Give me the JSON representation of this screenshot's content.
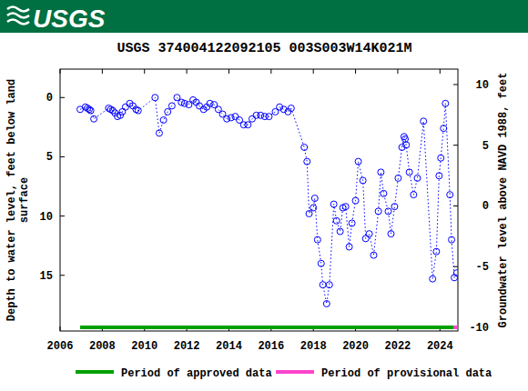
{
  "header": {
    "logo": "USGS"
  },
  "chart_data": {
    "type": "scatter",
    "title": "USGS 374004122092105 003S003W14K021M",
    "y_label": [
      "Depth to water level, feet below land",
      "surface"
    ],
    "y2_label": "Groundwater level above NAVD 1988, feet",
    "xlim": [
      2006,
      2024.85
    ],
    "xticks": [
      2006,
      2008,
      2010,
      2012,
      2014,
      2016,
      2018,
      2020,
      2022,
      2024
    ],
    "ylim": [
      19.7,
      -2.4
    ],
    "yticks": [
      0,
      5,
      10,
      15
    ],
    "y2lim": [
      -10.3,
      11.27
    ],
    "y2ticks": [
      10,
      5,
      0,
      -5,
      -10
    ],
    "x": [
      2006.95,
      2007.2,
      2007.3,
      2007.38,
      2007.45,
      2007.6,
      2008.3,
      2008.4,
      2008.5,
      2008.6,
      2008.72,
      2008.85,
      2008.95,
      2009.1,
      2009.3,
      2009.45,
      2009.6,
      2009.7,
      2010.5,
      2010.7,
      2010.9,
      2011.1,
      2011.3,
      2011.54,
      2011.75,
      2011.9,
      2012.1,
      2012.3,
      2012.45,
      2012.6,
      2012.8,
      2012.95,
      2013.1,
      2013.3,
      2013.5,
      2013.7,
      2013.9,
      2014.1,
      2014.3,
      2014.5,
      2014.7,
      2014.9,
      2015.1,
      2015.3,
      2015.5,
      2015.7,
      2015.9,
      2016.2,
      2016.4,
      2016.6,
      2016.8,
      2016.95,
      2017.57,
      2017.7,
      2017.8,
      2018.0,
      2018.07,
      2018.2,
      2018.37,
      2018.45,
      2018.63,
      2018.76,
      2018.97,
      2019.1,
      2019.27,
      2019.4,
      2019.53,
      2019.7,
      2019.83,
      2020.0,
      2020.13,
      2020.35,
      2020.48,
      2020.65,
      2020.86,
      2021.08,
      2021.2,
      2021.33,
      2021.55,
      2021.68,
      2021.85,
      2022.02,
      2022.2,
      2022.3,
      2022.35,
      2022.4,
      2022.55,
      2022.75,
      2022.93,
      2023.22,
      2023.65,
      2023.83,
      2023.96,
      2024.04,
      2024.17,
      2024.26,
      2024.47,
      2024.55,
      2024.68,
      2024.8
    ],
    "series": [
      {
        "color": "#0000ff",
        "marker": "circle",
        "line_style": "dotted",
        "values": [
          1.0,
          0.8,
          0.9,
          1.0,
          1.1,
          1.8,
          0.9,
          1.0,
          1.1,
          1.3,
          1.6,
          1.5,
          1.2,
          0.8,
          0.5,
          0.7,
          1.0,
          1.1,
          0.0,
          3.0,
          1.9,
          1.2,
          0.7,
          0.0,
          0.4,
          0.5,
          0.6,
          0.2,
          0.4,
          0.7,
          1.0,
          0.8,
          0.5,
          0.6,
          1.0,
          1.4,
          1.8,
          1.7,
          1.6,
          1.9,
          2.3,
          2.3,
          1.8,
          1.5,
          1.5,
          1.6,
          1.6,
          1.2,
          0.8,
          1.0,
          1.2,
          0.9,
          4.2,
          5.4,
          9.8,
          9.3,
          8.5,
          12.0,
          14.0,
          15.8,
          17.4,
          15.8,
          9.0,
          10.4,
          11.3,
          9.3,
          9.2,
          12.6,
          10.6,
          8.7,
          5.4,
          7.0,
          11.9,
          11.5,
          13.3,
          9.6,
          6.3,
          8.1,
          9.6,
          11.5,
          9.2,
          6.8,
          4.2,
          3.3,
          3.5,
          4.0,
          6.3,
          8.2,
          6.8,
          2.0,
          15.3,
          13.0,
          6.6,
          5.1,
          2.6,
          0.5,
          8.2,
          12.0,
          15.2,
          14.8
        ]
      }
    ],
    "periods": [
      {
        "name": "Period of approved data",
        "color": "#00a000",
        "start": 2006.95,
        "end": 2024.65
      },
      {
        "name": "Period of provisional data",
        "color": "#ff44cc",
        "start": 2024.65,
        "end": 2024.85
      }
    ]
  }
}
